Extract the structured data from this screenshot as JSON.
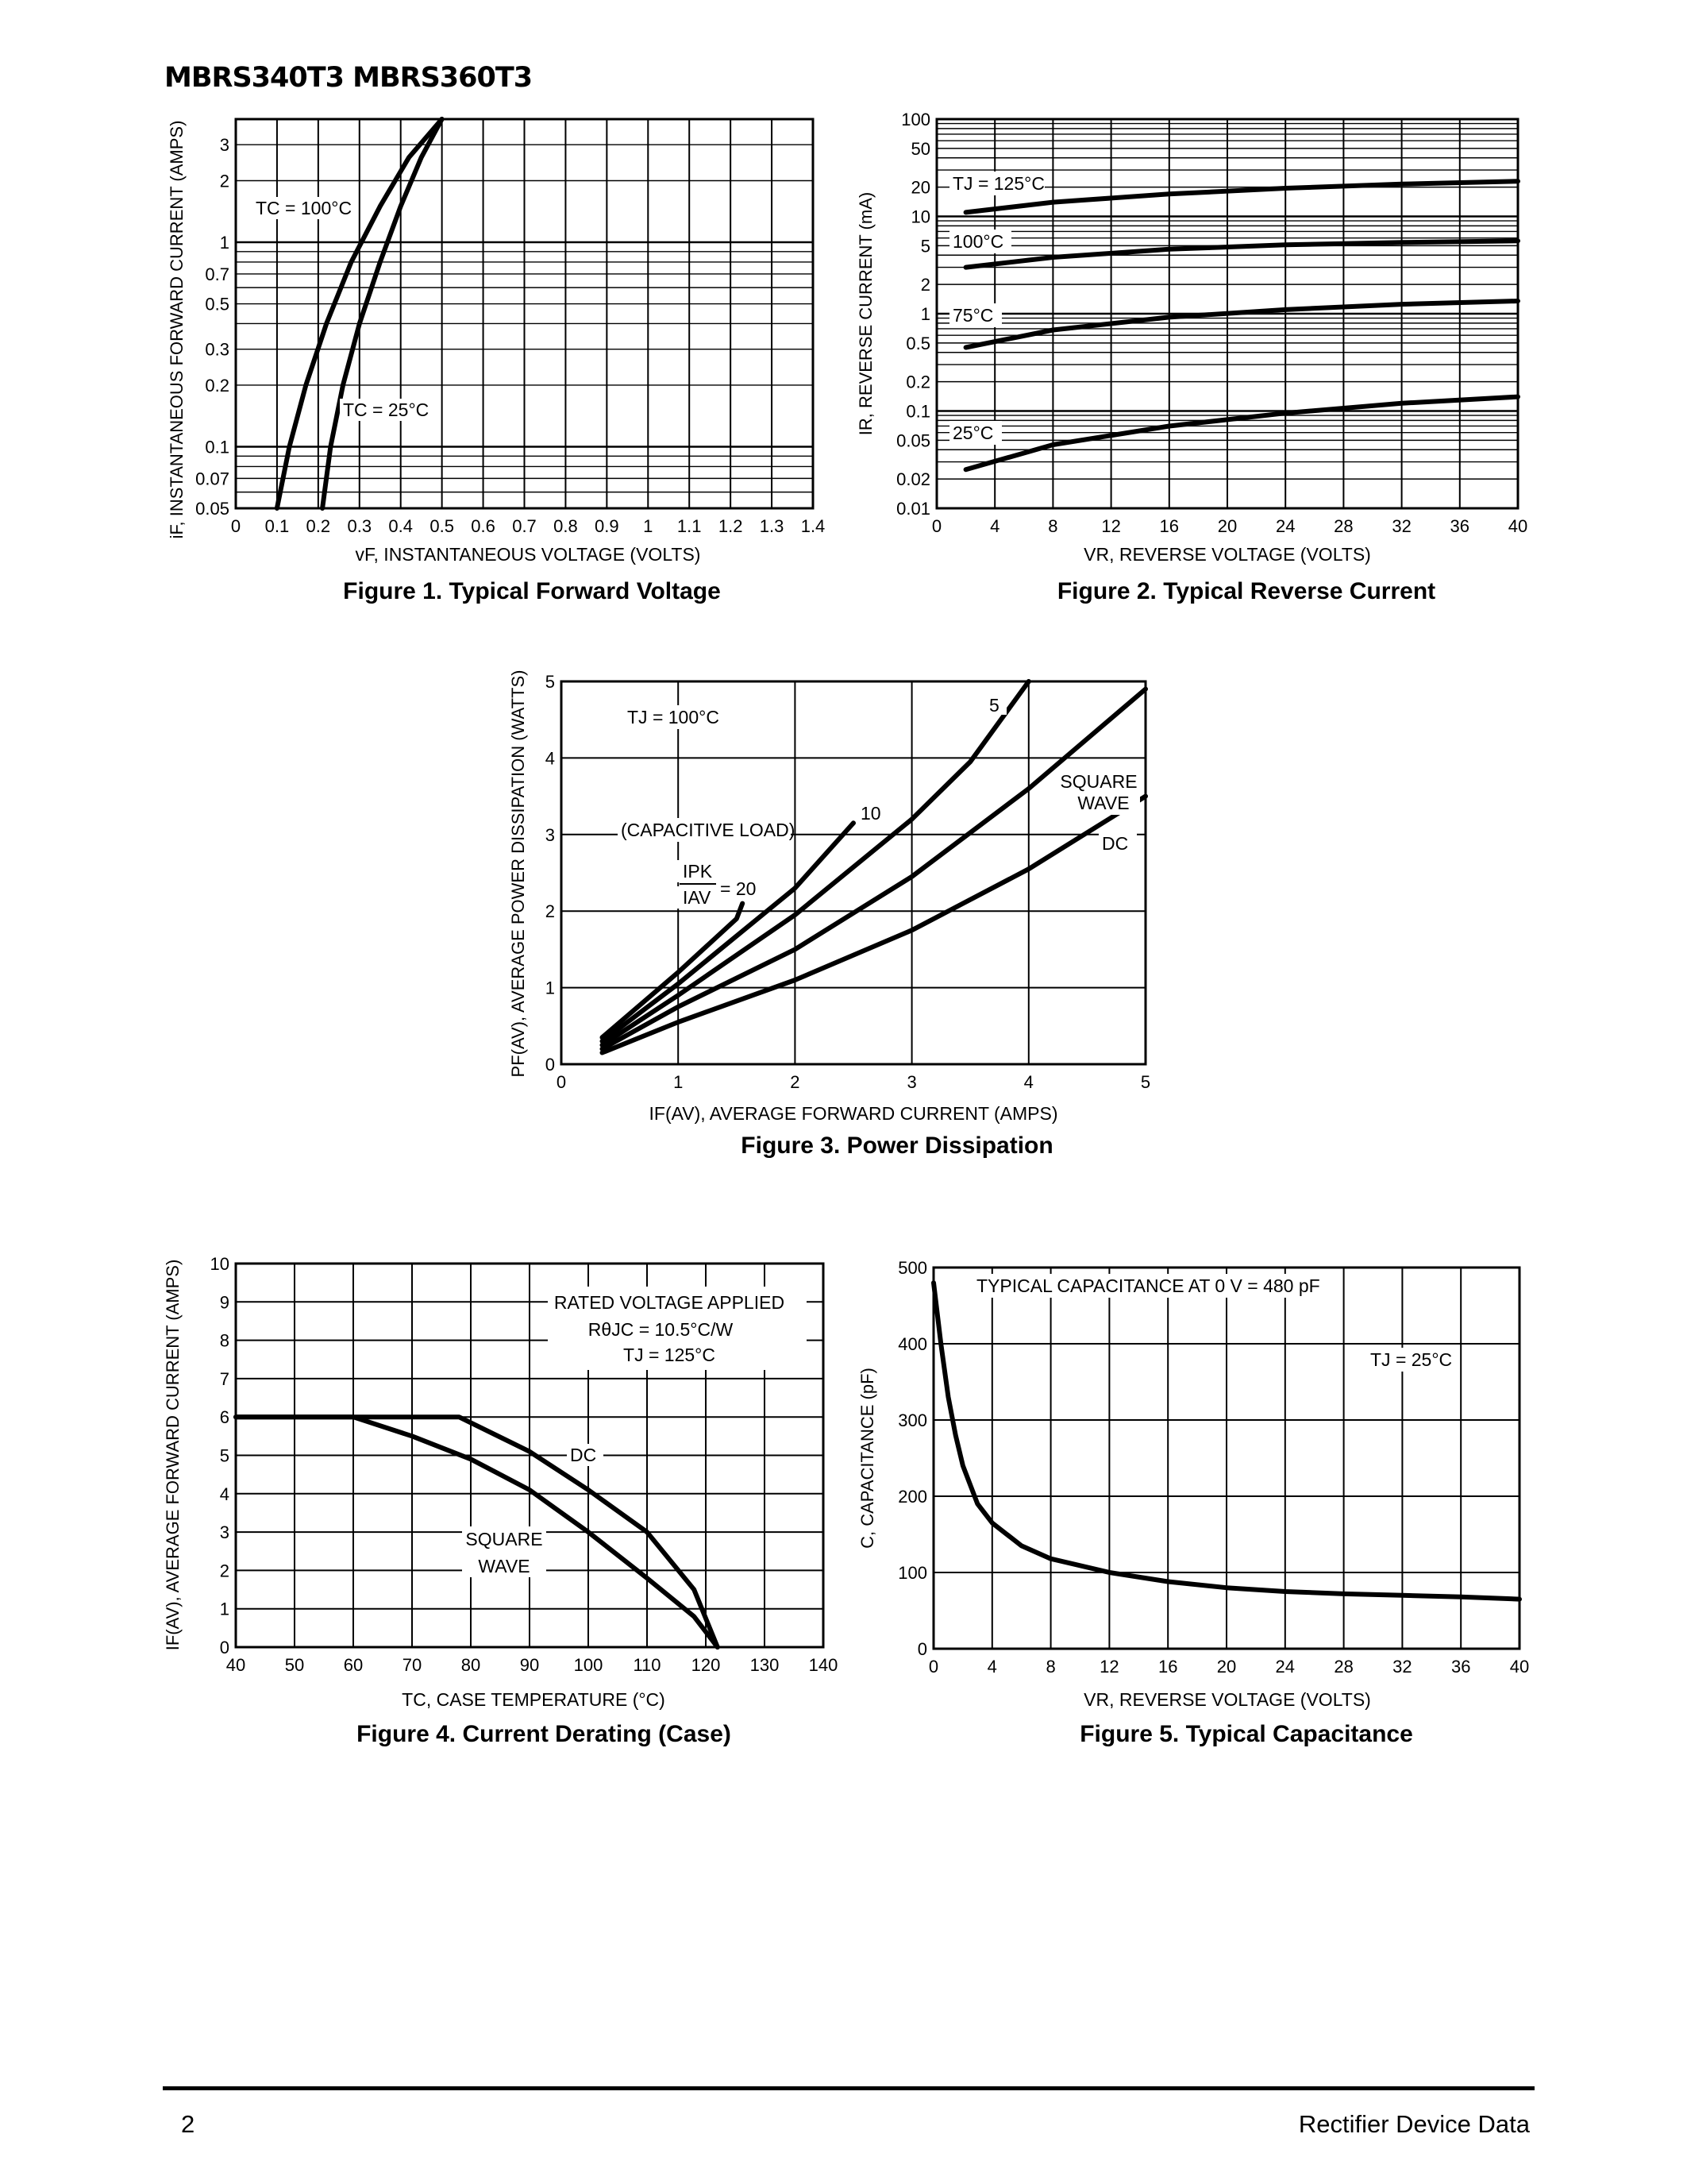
{
  "header": {
    "title": "MBRS340T3 MBRS360T3"
  },
  "footer": {
    "page_number": "2",
    "doc_title": "Rectifier Device Data"
  },
  "chart_data": [
    {
      "id": "fig1",
      "type": "line",
      "title": "Figure 1. Typical Forward Voltage",
      "xlabel": "vF, INSTANTANEOUS VOLTAGE (VOLTS)",
      "ylabel": "iF, INSTANTANEOUS FORWARD CURRENT (AMPS)",
      "xlim": [
        0,
        1.4
      ],
      "ylim": [
        0.05,
        4
      ],
      "yscale": "log",
      "x_ticks": [
        "0",
        "0.1",
        "0.2",
        "0.3",
        "0.4",
        "0.5",
        "0.6",
        "0.7",
        "0.8",
        "0.9",
        "1",
        "1.1",
        "1.2",
        "1.3",
        "1.4"
      ],
      "y_ticks": [
        "0.05",
        "0.07",
        "0.1",
        "0.2",
        "0.3",
        "0.5",
        "0.7",
        "1",
        "2",
        "3"
      ],
      "grid": true,
      "series": [
        {
          "name": "TC = 100°C",
          "x": [
            0.1,
            0.13,
            0.17,
            0.22,
            0.28,
            0.35,
            0.42,
            0.5
          ],
          "y": [
            0.05,
            0.1,
            0.2,
            0.4,
            0.8,
            1.5,
            2.6,
            4
          ]
        },
        {
          "name": "TC = 25°C",
          "x": [
            0.21,
            0.23,
            0.26,
            0.3,
            0.35,
            0.4,
            0.45,
            0.5
          ],
          "y": [
            0.05,
            0.1,
            0.2,
            0.4,
            0.8,
            1.5,
            2.6,
            4
          ]
        }
      ]
    },
    {
      "id": "fig2",
      "type": "line",
      "title": "Figure 2. Typical Reverse Current",
      "xlabel": "VR, REVERSE VOLTAGE (VOLTS)",
      "ylabel": "IR, REVERSE CURRENT (mA)",
      "xlim": [
        0,
        40
      ],
      "ylim": [
        0.01,
        100
      ],
      "yscale": "log",
      "x_ticks": [
        "0",
        "4",
        "8",
        "12",
        "16",
        "20",
        "24",
        "28",
        "32",
        "36",
        "40"
      ],
      "y_ticks": [
        "0.01",
        "0.02",
        "0.05",
        "0.1",
        "0.2",
        "0.5",
        "1",
        "2",
        "5",
        "10",
        "20",
        "50",
        "100"
      ],
      "grid": true,
      "series": [
        {
          "name": "TJ = 125°C",
          "x": [
            2,
            8,
            16,
            24,
            32,
            40
          ],
          "y": [
            11,
            14,
            17,
            19.5,
            21.5,
            23
          ]
        },
        {
          "name": "100°C",
          "x": [
            2,
            8,
            16,
            24,
            32,
            40
          ],
          "y": [
            3,
            3.8,
            4.6,
            5.1,
            5.4,
            5.6
          ]
        },
        {
          "name": "75°C",
          "x": [
            2,
            8,
            16,
            24,
            32,
            40
          ],
          "y": [
            0.45,
            0.68,
            0.92,
            1.1,
            1.25,
            1.35
          ]
        },
        {
          "name": "25°C",
          "x": [
            2,
            8,
            16,
            24,
            32,
            40
          ],
          "y": [
            0.025,
            0.045,
            0.07,
            0.095,
            0.12,
            0.14
          ]
        }
      ]
    },
    {
      "id": "fig3",
      "type": "line",
      "title": "Figure 3. Power Dissipation",
      "xlabel": "IF(AV), AVERAGE FORWARD CURRENT (AMPS)",
      "ylabel": "PF(AV), AVERAGE POWER DISSIPATION (WATTS)",
      "xlim": [
        0,
        5
      ],
      "ylim": [
        0,
        5
      ],
      "x_ticks": [
        "0",
        "1",
        "2",
        "3",
        "4",
        "5"
      ],
      "y_ticks": [
        "0",
        "1",
        "2",
        "3",
        "4",
        "5"
      ],
      "grid": true,
      "series": [
        {
          "name": "20",
          "x": [
            0.35,
            1,
            1.5,
            1.55
          ],
          "y": [
            0.35,
            1.2,
            1.9,
            2.1
          ]
        },
        {
          "name": "10",
          "x": [
            0.35,
            1,
            2,
            2.5
          ],
          "y": [
            0.3,
            1.05,
            2.3,
            3.15
          ]
        },
        {
          "name": "5",
          "x": [
            0.35,
            1,
            2,
            3,
            3.5,
            4
          ],
          "y": [
            0.25,
            0.9,
            1.95,
            3.2,
            3.95,
            5
          ]
        },
        {
          "name": "SQUARE WAVE",
          "x": [
            0.35,
            1,
            2,
            3,
            4,
            5
          ],
          "y": [
            0.2,
            0.75,
            1.5,
            2.45,
            3.6,
            4.9
          ]
        },
        {
          "name": "DC",
          "x": [
            0.35,
            1,
            2,
            3,
            4,
            5
          ],
          "y": [
            0.15,
            0.55,
            1.1,
            1.75,
            2.55,
            3.5
          ]
        }
      ]
    },
    {
      "id": "fig4",
      "type": "line",
      "title": "Figure 4. Current Derating (Case)",
      "xlabel": "TC, CASE TEMPERATURE (°C)",
      "ylabel": "IF(AV), AVERAGE FORWARD CURRENT (AMPS)",
      "xlim": [
        40,
        140
      ],
      "ylim": [
        0,
        10
      ],
      "x_ticks": [
        "40",
        "50",
        "60",
        "70",
        "80",
        "90",
        "100",
        "110",
        "120",
        "130",
        "140"
      ],
      "y_ticks": [
        "0",
        "1",
        "2",
        "3",
        "4",
        "5",
        "6",
        "7",
        "8",
        "9",
        "10"
      ],
      "grid": true,
      "series": [
        {
          "name": "DC",
          "x": [
            40,
            78,
            90,
            100,
            110,
            118,
            122
          ],
          "y": [
            6,
            6,
            5.1,
            4.1,
            3,
            1.5,
            0
          ]
        },
        {
          "name": "SQUARE WAVE",
          "x": [
            40,
            60,
            70,
            80,
            90,
            100,
            110,
            118,
            122
          ],
          "y": [
            6,
            6,
            5.5,
            4.9,
            4.1,
            3,
            1.8,
            0.8,
            0
          ]
        }
      ]
    },
    {
      "id": "fig5",
      "type": "line",
      "title": "Figure 5. Typical Capacitance",
      "xlabel": "VR, REVERSE VOLTAGE (VOLTS)",
      "ylabel": "C, CAPACITANCE (pF)",
      "xlim": [
        0,
        40
      ],
      "ylim": [
        0,
        500
      ],
      "x_ticks": [
        "0",
        "4",
        "8",
        "12",
        "16",
        "20",
        "24",
        "28",
        "32",
        "36",
        "40"
      ],
      "y_ticks": [
        "0",
        "100",
        "200",
        "300",
        "400",
        "500"
      ],
      "grid": true,
      "series": [
        {
          "name": "TJ = 25°C",
          "x": [
            0,
            0.5,
            1,
            1.5,
            2,
            3,
            4,
            6,
            8,
            12,
            16,
            20,
            24,
            28,
            32,
            36,
            40
          ],
          "y": [
            480,
            400,
            330,
            280,
            240,
            190,
            165,
            135,
            118,
            100,
            88,
            80,
            75,
            72,
            70,
            68,
            65
          ]
        }
      ]
    }
  ],
  "annotations": {
    "fig1": {
      "tc100": "TC = 100°C",
      "tc25": "TC = 25°C"
    },
    "fig2": {
      "t125": "TJ = 125°C",
      "t100": "100°C",
      "t75": "75°C",
      "t25": "25°C"
    },
    "fig3": {
      "tj": "TJ = 100°C",
      "cap_load": "(CAPACITIVE LOAD)",
      "ipk": "IPK",
      "iav": "IAV",
      "eq20": "= 20",
      "l10": "10",
      "l5": "5",
      "square": "SQUARE",
      "wave": "WAVE",
      "dc": "DC"
    },
    "fig4": {
      "rated": "RATED VOLTAGE APPLIED",
      "rjc": "RθJC = 10.5°C/W",
      "tj": "TJ = 125°C",
      "dc": "DC",
      "square": "SQUARE",
      "wave": "WAVE"
    },
    "fig5": {
      "typ": "TYPICAL CAPACITANCE AT 0 V = 480 pF",
      "tj": "TJ = 25°C"
    }
  }
}
